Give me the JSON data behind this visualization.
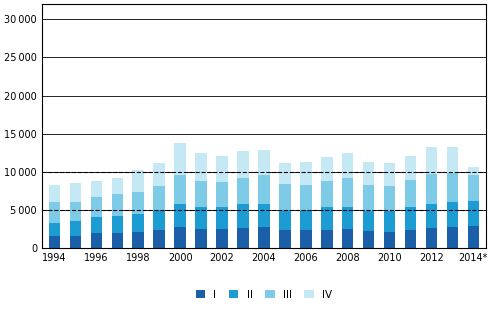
{
  "years": [
    1994,
    1995,
    1996,
    1997,
    1998,
    1999,
    2000,
    2001,
    2002,
    2003,
    2004,
    2005,
    2006,
    2007,
    2008,
    2009,
    2010,
    2011,
    2012,
    2013,
    2014
  ],
  "Q1": [
    1500,
    1600,
    1900,
    2000,
    2100,
    2400,
    2700,
    2500,
    2500,
    2600,
    2700,
    2300,
    2300,
    2400,
    2500,
    2200,
    2100,
    2300,
    2600,
    2700,
    2800
  ],
  "Q2": [
    1800,
    1900,
    2100,
    2200,
    2300,
    2600,
    3100,
    2900,
    2800,
    3100,
    3100,
    2700,
    2600,
    2900,
    2900,
    2600,
    2700,
    3100,
    3200,
    3300,
    3300
  ],
  "Q3": [
    2700,
    2500,
    2700,
    2800,
    2900,
    3100,
    3800,
    3400,
    3400,
    3500,
    3700,
    3400,
    3300,
    3500,
    3800,
    3400,
    3300,
    3500,
    3900,
    3800,
    3500
  ],
  "Q4": [
    2300,
    2500,
    2100,
    2200,
    2900,
    3000,
    4100,
    3600,
    3400,
    3500,
    3300,
    2800,
    3100,
    3100,
    3200,
    3100,
    3000,
    3100,
    3500,
    3500,
    1000
  ],
  "colors": [
    "#1a5fa8",
    "#1d9cd3",
    "#7ecbe8",
    "#c5e8f5"
  ],
  "legend_labels": [
    "I",
    "II",
    "III",
    "IV"
  ],
  "ylim": [
    0,
    32000
  ],
  "yticks": [
    0,
    5000,
    10000,
    15000,
    20000,
    25000,
    30000
  ],
  "dashed_lines": [
    5000,
    10000
  ],
  "bar_width": 0.55,
  "figure_width": 4.94,
  "figure_height": 3.28,
  "dpi": 100
}
